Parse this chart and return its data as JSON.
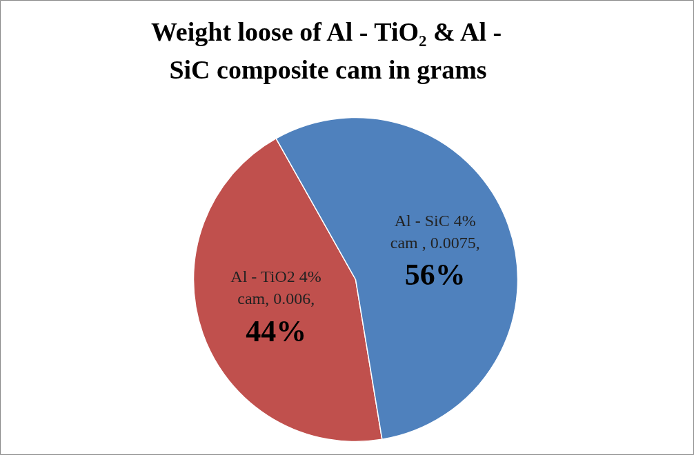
{
  "chart_data": {
    "type": "pie",
    "title": "Weight loose of Al - TiO₂ & Al - SiC composite cam in grams",
    "categories": [
      "Al - TiO2 4% cam",
      "Al - SiC 4% cam"
    ],
    "values": [
      0.006,
      0.0075
    ],
    "colors": [
      "#c0504d",
      "#4f81bd"
    ],
    "value_labels": [
      ", 0.006,\n44%",
      " , 0.0075,\n56%"
    ]
  }
}
